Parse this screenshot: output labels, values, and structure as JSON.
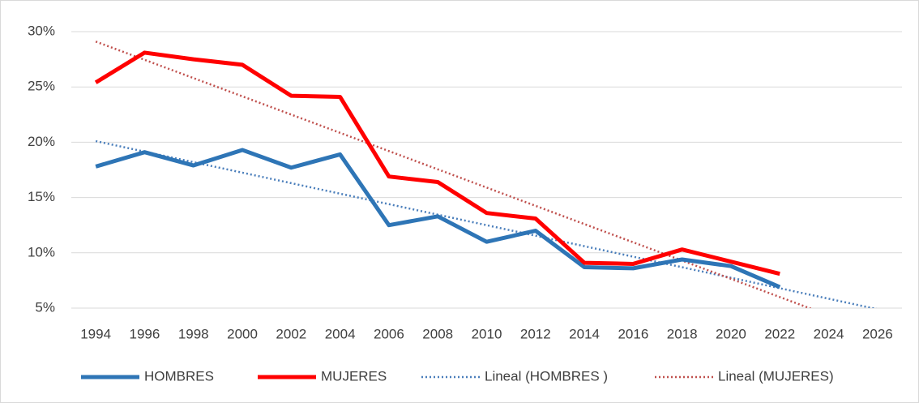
{
  "chart_data": {
    "type": "line",
    "categories": [
      "1994",
      "1996",
      "1998",
      "2000",
      "2002",
      "2004",
      "2006",
      "2008",
      "2010",
      "2012",
      "2014",
      "2016",
      "2018",
      "2020",
      "2022",
      "2024",
      "2026"
    ],
    "series": [
      {
        "name": "HOMBRES",
        "color": "#2e75b6",
        "line_style": "solid",
        "values": [
          17.8,
          19.1,
          17.9,
          19.3,
          17.7,
          18.9,
          12.5,
          13.3,
          11.0,
          12.0,
          8.7,
          8.6,
          9.4,
          8.8,
          6.9,
          null,
          null
        ]
      },
      {
        "name": "MUJERES",
        "color": "#ff0000",
        "line_style": "solid",
        "values": [
          25.4,
          28.1,
          27.5,
          27.0,
          24.2,
          24.1,
          16.9,
          16.4,
          13.6,
          13.1,
          9.1,
          9.0,
          10.3,
          9.2,
          8.1,
          null,
          null
        ]
      },
      {
        "name": "Lineal (HOMBRES )",
        "color": "#4a7ebb",
        "line_style": "dotted",
        "values": [
          20.1,
          19.15,
          18.2,
          17.25,
          16.3,
          15.35,
          14.4,
          13.45,
          12.5,
          11.55,
          10.6,
          9.65,
          8.7,
          7.75,
          6.8,
          5.85,
          4.9
        ]
      },
      {
        "name": "Lineal (MUJERES)",
        "color": "#c0504d",
        "line_style": "dotted",
        "values": [
          29.1,
          27.45,
          25.8,
          24.15,
          22.5,
          20.85,
          19.2,
          17.55,
          15.9,
          14.25,
          12.6,
          10.95,
          9.3,
          7.65,
          6.0,
          4.35,
          2.7
        ]
      }
    ],
    "ylim": [
      5,
      30
    ],
    "yticks": [
      {
        "value": 5,
        "label": "5%"
      },
      {
        "value": 10,
        "label": "10%"
      },
      {
        "value": 15,
        "label": "15%"
      },
      {
        "value": 20,
        "label": "20%"
      },
      {
        "value": 25,
        "label": "25%"
      },
      {
        "value": 30,
        "label": "30%"
      }
    ],
    "grid": true,
    "legend": "bottom"
  }
}
